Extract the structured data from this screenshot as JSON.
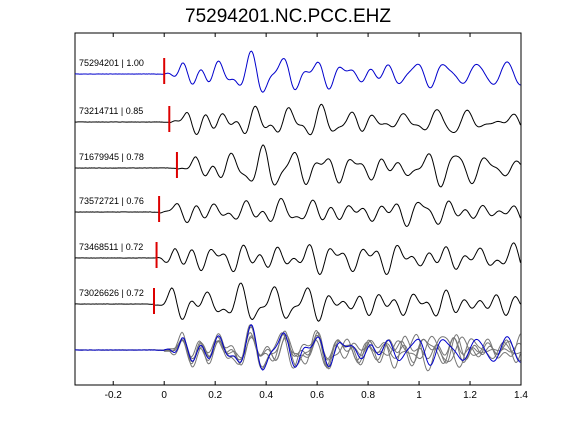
{
  "chart_data": {
    "type": "line",
    "title": "75294201.NC.PCC.EHZ",
    "xlabel": "",
    "ylabel": "",
    "xlim": [
      -0.35,
      1.4
    ],
    "x_ticks": [
      -0.2,
      0,
      0.2,
      0.4,
      0.6,
      0.8,
      1,
      1.2,
      1.4
    ],
    "x_tick_labels": [
      "-0.2",
      "0",
      "0.2",
      "0.4",
      "0.6",
      "0.8",
      "1",
      "1.2",
      "1.4"
    ],
    "grid": false,
    "colors": {
      "master_trace": "#0000cc",
      "other_trace": "#000000",
      "stack_trace": "#777777",
      "pick_marker": "#dd0000"
    },
    "series": [
      {
        "name": "75294201 | 1.00",
        "event_id": "75294201",
        "cc": 1.0,
        "pick_time": 0.0,
        "color": "#0000cc",
        "seed": 1
      },
      {
        "name": "73214711 | 0.85",
        "event_id": "73214711",
        "cc": 0.85,
        "pick_time": 0.02,
        "color": "#000000",
        "seed": 2
      },
      {
        "name": "71679945 | 0.78",
        "event_id": "71679945",
        "cc": 0.78,
        "pick_time": 0.05,
        "color": "#000000",
        "seed": 3
      },
      {
        "name": "73572721 | 0.76",
        "event_id": "73572721",
        "cc": 0.76,
        "pick_time": -0.02,
        "color": "#000000",
        "seed": 4
      },
      {
        "name": "73468511 | 0.72",
        "event_id": "73468511",
        "cc": 0.72,
        "pick_time": -0.03,
        "color": "#000000",
        "seed": 5
      },
      {
        "name": "73026626 | 0.72",
        "event_id": "73026626",
        "cc": 0.72,
        "pick_time": -0.04,
        "color": "#000000",
        "seed": 6
      }
    ],
    "overlay": {
      "description_visible": false
    }
  }
}
